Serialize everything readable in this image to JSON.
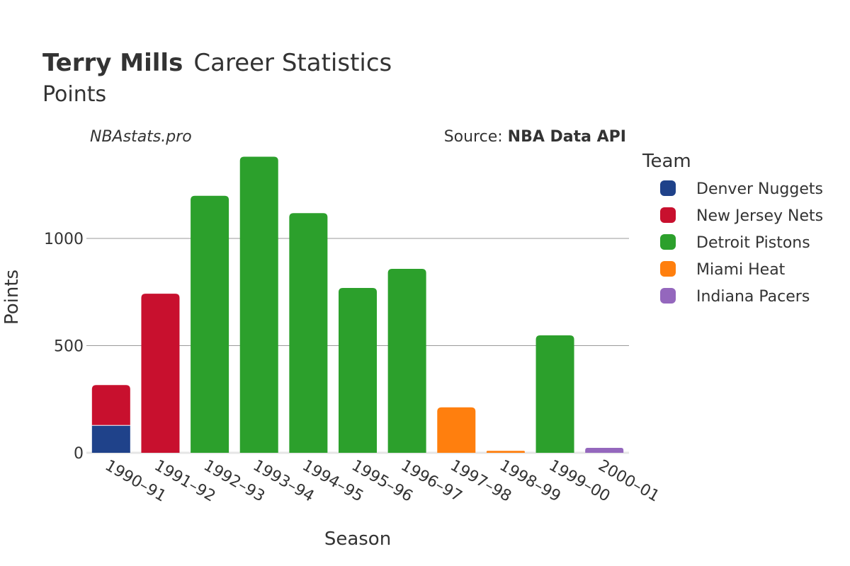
{
  "header": {
    "player": "Terry Mills",
    "title_rest": "Career Statistics",
    "subtitle": "Points",
    "credit": "NBAstats.pro",
    "source_prefix": "Source: ",
    "source_name": "NBA Data API"
  },
  "legend": {
    "title": "Team"
  },
  "colors": {
    "Denver Nuggets": "#1f428a",
    "New Jersey Nets": "#c8102e",
    "Detroit Pistons": "#2ca02c",
    "Miami Heat": "#ff7f0e",
    "Indiana Pacers": "#9467bd"
  },
  "chart_data": {
    "type": "bar",
    "stacked": true,
    "title": "Terry Mills Career Statistics",
    "subtitle": "Points",
    "xlabel": "Season",
    "ylabel": "Points",
    "ylim": [
      0,
      1450
    ],
    "yticks": [
      0,
      500,
      1000
    ],
    "grid": true,
    "legend_position": "right",
    "categories": [
      "1990–91",
      "1991–92",
      "1992–93",
      "1993–94",
      "1994–95",
      "1995–96",
      "1996–97",
      "1997–98",
      "1998–99",
      "1999–00",
      "2000–01"
    ],
    "series": [
      {
        "name": "Denver Nuggets",
        "values": [
          128,
          0,
          0,
          0,
          0,
          0,
          0,
          0,
          0,
          0,
          0
        ]
      },
      {
        "name": "New Jersey Nets",
        "values": [
          188,
          742,
          0,
          0,
          0,
          0,
          0,
          0,
          0,
          0,
          0
        ]
      },
      {
        "name": "Detroit Pistons",
        "values": [
          0,
          0,
          1199,
          1381,
          1118,
          769,
          858,
          0,
          0,
          548,
          0
        ]
      },
      {
        "name": "Miami Heat",
        "values": [
          0,
          0,
          0,
          0,
          0,
          0,
          0,
          212,
          9,
          0,
          0
        ]
      },
      {
        "name": "Indiana Pacers",
        "values": [
          0,
          0,
          0,
          0,
          0,
          0,
          0,
          0,
          0,
          0,
          23
        ]
      }
    ]
  }
}
